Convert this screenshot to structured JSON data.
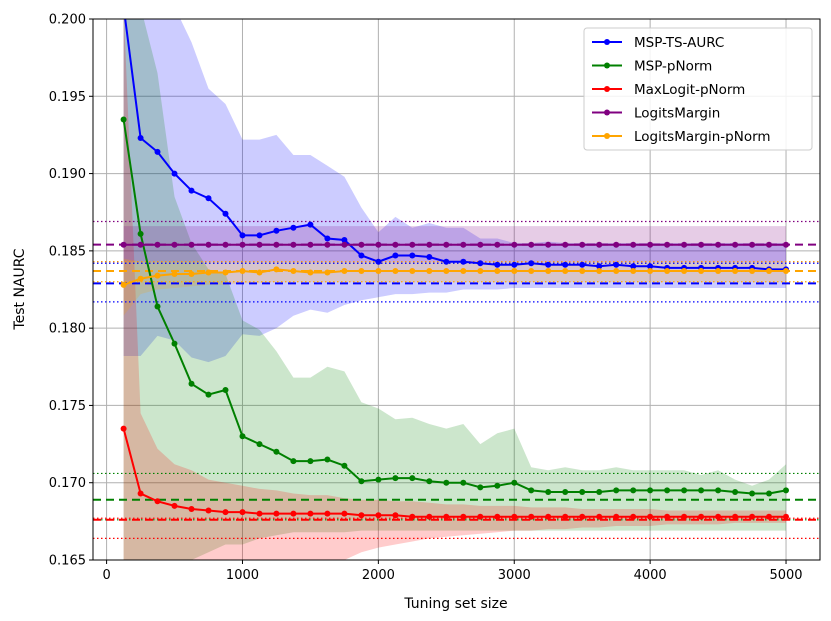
{
  "chart_data": {
    "type": "line",
    "xlabel": "Tuning set size",
    "ylabel": "Test NAURC",
    "xlim": [
      -100,
      5250
    ],
    "ylim": [
      0.165,
      0.2
    ],
    "grid": true,
    "legend_position": "top-right",
    "x_ticks": [
      0,
      1000,
      2000,
      3000,
      4000,
      5000
    ],
    "y_ticks": [
      0.165,
      0.17,
      0.175,
      0.18,
      0.185,
      0.19,
      0.195,
      0.2
    ],
    "x_tick_labels": [
      "0",
      "1000",
      "2000",
      "3000",
      "4000",
      "5000"
    ],
    "y_tick_labels": [
      "0.165",
      "0.170",
      "0.175",
      "0.180",
      "0.185",
      "0.190",
      "0.195",
      "0.200"
    ],
    "x": [
      125,
      250,
      375,
      500,
      625,
      750,
      875,
      1000,
      1125,
      1250,
      1375,
      1500,
      1625,
      1750,
      1875,
      2000,
      2125,
      2250,
      2375,
      2500,
      2625,
      2750,
      2875,
      3000,
      3125,
      3250,
      3375,
      3500,
      3625,
      3750,
      3875,
      4000,
      4125,
      4250,
      4375,
      4500,
      4625,
      4750,
      4875,
      5000
    ],
    "series": [
      {
        "name": "MSP-TS-AURC",
        "color": "#0000ff",
        "values": [
          0.2008,
          0.1923,
          0.1914,
          0.19,
          0.1889,
          0.1884,
          0.1874,
          0.186,
          0.186,
          0.1863,
          0.1865,
          0.1867,
          0.1858,
          0.1857,
          0.1847,
          0.1843,
          0.1847,
          0.1847,
          0.1846,
          0.1843,
          0.1843,
          0.1842,
          0.1841,
          0.1841,
          0.1842,
          0.1841,
          0.1841,
          0.1841,
          0.184,
          0.1841,
          0.184,
          0.184,
          0.1839,
          0.1839,
          0.1839,
          0.1839,
          0.1839,
          0.1839,
          0.1838,
          0.1838
        ],
        "band_upper": [
          0.2008,
          0.2008,
          0.2008,
          0.2008,
          0.1985,
          0.1955,
          0.1945,
          0.1922,
          0.1922,
          0.1925,
          0.1912,
          0.1912,
          0.1905,
          0.1898,
          0.1878,
          0.1862,
          0.1872,
          0.1865,
          0.1868,
          0.1865,
          0.1865,
          0.1858,
          0.1858,
          0.1855,
          0.1855,
          0.1856,
          0.1855,
          0.1855,
          0.1855,
          0.1855,
          0.1855,
          0.1855,
          0.1855,
          0.1855,
          0.1855,
          0.1855,
          0.1855,
          0.1855,
          0.1855,
          0.1855
        ],
        "band_lower": [
          0.1782,
          0.1782,
          0.1795,
          0.1792,
          0.1781,
          0.1778,
          0.1782,
          0.1796,
          0.1795,
          0.18,
          0.1808,
          0.1812,
          0.181,
          0.1815,
          0.1818,
          0.182,
          0.1822,
          0.1822,
          0.1823,
          0.1823,
          0.1825,
          0.1825,
          0.1825,
          0.1826,
          0.1826,
          0.1826,
          0.1826,
          0.1826,
          0.1826,
          0.1826,
          0.1826,
          0.1826,
          0.1826,
          0.1826,
          0.1826,
          0.1826,
          0.1826,
          0.1826,
          0.1826,
          0.1826
        ]
      },
      {
        "name": "MSP-pNorm",
        "color": "#008000",
        "values": [
          0.1935,
          0.1861,
          0.1814,
          0.179,
          0.1764,
          0.1757,
          0.176,
          0.173,
          0.1725,
          0.172,
          0.1714,
          0.1714,
          0.1715,
          0.1711,
          0.1701,
          0.1702,
          0.1703,
          0.1703,
          0.1701,
          0.17,
          0.17,
          0.1697,
          0.1698,
          0.17,
          0.1695,
          0.1694,
          0.1694,
          0.1694,
          0.1694,
          0.1695,
          0.1695,
          0.1695,
          0.1695,
          0.1695,
          0.1695,
          0.1695,
          0.1694,
          0.1693,
          0.1693,
          0.1695
        ],
        "band_upper": [
          0.2008,
          0.2008,
          0.1965,
          0.1885,
          0.1855,
          0.1838,
          0.1835,
          0.1805,
          0.1799,
          0.1785,
          0.1768,
          0.1768,
          0.1775,
          0.1772,
          0.1752,
          0.1748,
          0.1741,
          0.1742,
          0.1738,
          0.1735,
          0.1738,
          0.1725,
          0.1732,
          0.1735,
          0.171,
          0.1708,
          0.171,
          0.1708,
          0.1708,
          0.171,
          0.1708,
          0.1708,
          0.1708,
          0.1708,
          0.1705,
          0.1708,
          0.1702,
          0.1698,
          0.1702,
          0.1712
        ],
        "band_lower": [
          0.165,
          0.165,
          0.165,
          0.165,
          0.165,
          0.1655,
          0.166,
          0.166,
          0.1664,
          0.1666,
          0.1668,
          0.1668,
          0.1668,
          0.1668,
          0.1669,
          0.1669,
          0.1669,
          0.1669,
          0.1669,
          0.1669,
          0.1669,
          0.1669,
          0.1669,
          0.1669,
          0.1669,
          0.1669,
          0.1669,
          0.1669,
          0.1669,
          0.1669,
          0.1669,
          0.1669,
          0.1669,
          0.1669,
          0.1669,
          0.1669,
          0.1669,
          0.1669,
          0.1669,
          0.1669
        ]
      },
      {
        "name": "MaxLogit-pNorm",
        "color": "#ff0000",
        "values": [
          0.1735,
          0.1693,
          0.1688,
          0.1685,
          0.1683,
          0.1682,
          0.1681,
          0.1681,
          0.168,
          0.168,
          0.168,
          0.168,
          0.168,
          0.168,
          0.1679,
          0.1679,
          0.1679,
          0.1678,
          0.1678,
          0.1678,
          0.1678,
          0.1678,
          0.1678,
          0.1678,
          0.1678,
          0.1678,
          0.1678,
          0.1678,
          0.1678,
          0.1678,
          0.1678,
          0.1678,
          0.1678,
          0.1678,
          0.1678,
          0.1678,
          0.1678,
          0.1678,
          0.1678,
          0.1678
        ],
        "band_upper": [
          0.2008,
          0.1745,
          0.1722,
          0.1712,
          0.1708,
          0.1702,
          0.17,
          0.1698,
          0.1696,
          0.1695,
          0.1693,
          0.1692,
          0.1692,
          0.169,
          0.1689,
          0.1689,
          0.1688,
          0.1688,
          0.1687,
          0.1686,
          0.1686,
          0.1685,
          0.1685,
          0.1685,
          0.1684,
          0.1684,
          0.1684,
          0.1683,
          0.1683,
          0.1683,
          0.1683,
          0.1683,
          0.1682,
          0.1682,
          0.1682,
          0.1682,
          0.1682,
          0.1682,
          0.1682,
          0.1682
        ],
        "band_lower": [
          0.165,
          0.165,
          0.165,
          0.165,
          0.165,
          0.165,
          0.165,
          0.165,
          0.165,
          0.165,
          0.165,
          0.165,
          0.165,
          0.165,
          0.1655,
          0.1658,
          0.166,
          0.1662,
          0.1664,
          0.1665,
          0.1666,
          0.1667,
          0.1668,
          0.1669,
          0.1669,
          0.167,
          0.167,
          0.1671,
          0.1671,
          0.1672,
          0.1672,
          0.1672,
          0.1673,
          0.1673,
          0.1673,
          0.1673,
          0.1674,
          0.1674,
          0.1674,
          0.1674
        ]
      },
      {
        "name": "LogitsMargin",
        "color": "#800080",
        "values": [
          0.1854,
          0.1854,
          0.1854,
          0.1854,
          0.1854,
          0.1854,
          0.1854,
          0.1854,
          0.1854,
          0.1854,
          0.1854,
          0.1854,
          0.1854,
          0.1854,
          0.1854,
          0.1854,
          0.1854,
          0.1854,
          0.1854,
          0.1854,
          0.1854,
          0.1854,
          0.1854,
          0.1854,
          0.1854,
          0.1854,
          0.1854,
          0.1854,
          0.1854,
          0.1854,
          0.1854,
          0.1854,
          0.1854,
          0.1854,
          0.1854,
          0.1854,
          0.1854,
          0.1854,
          0.1854,
          0.1854
        ],
        "band_upper": [
          0.1866,
          0.1866,
          0.1866,
          0.1866,
          0.1866,
          0.1866,
          0.1866,
          0.1866,
          0.1866,
          0.1866,
          0.1866,
          0.1866,
          0.1866,
          0.1866,
          0.1866,
          0.1866,
          0.1866,
          0.1866,
          0.1866,
          0.1866,
          0.1866,
          0.1866,
          0.1866,
          0.1866,
          0.1866,
          0.1866,
          0.1866,
          0.1866,
          0.1866,
          0.1866,
          0.1866,
          0.1866,
          0.1866,
          0.1866,
          0.1866,
          0.1866,
          0.1866,
          0.1866,
          0.1866,
          0.1866
        ],
        "band_lower": [
          0.1843,
          0.1843,
          0.1843,
          0.1843,
          0.1843,
          0.1843,
          0.1843,
          0.1843,
          0.1843,
          0.1843,
          0.1843,
          0.1843,
          0.1843,
          0.1843,
          0.1843,
          0.1843,
          0.1843,
          0.1843,
          0.1843,
          0.1843,
          0.1843,
          0.1843,
          0.1843,
          0.1843,
          0.1843,
          0.1843,
          0.1843,
          0.1843,
          0.1843,
          0.1843,
          0.1843,
          0.1843,
          0.1843,
          0.1843,
          0.1843,
          0.1843,
          0.1843,
          0.1843,
          0.1843,
          0.1843
        ]
      },
      {
        "name": "LogitsMargin-pNorm",
        "color": "#ffa500",
        "values": [
          0.1828,
          0.1832,
          0.1834,
          0.1835,
          0.1835,
          0.1836,
          0.1836,
          0.1837,
          0.1836,
          0.1838,
          0.1837,
          0.1836,
          0.1836,
          0.1837,
          0.1837,
          0.1837,
          0.1837,
          0.1837,
          0.1837,
          0.1837,
          0.1837,
          0.1837,
          0.1837,
          0.1837,
          0.1837,
          0.1837,
          0.1837,
          0.1837,
          0.1837,
          0.1837,
          0.1837,
          0.1837,
          0.1837,
          0.1837,
          0.1837,
          0.1837,
          0.1837,
          0.1837,
          0.1837,
          0.1837
        ],
        "band_upper": [
          0.1845,
          0.1843,
          0.1843,
          0.1843,
          0.1843,
          0.1843,
          0.1843,
          0.1843,
          0.1843,
          0.1843,
          0.1843,
          0.1843,
          0.1843,
          0.1843,
          0.1843,
          0.1843,
          0.1843,
          0.1843,
          0.1843,
          0.1843,
          0.1843,
          0.1843,
          0.1843,
          0.1843,
          0.1843,
          0.1843,
          0.1843,
          0.1843,
          0.1843,
          0.1843,
          0.1843,
          0.1843,
          0.1843,
          0.1843,
          0.1843,
          0.1843,
          0.1843,
          0.1843,
          0.1843,
          0.1843
        ],
        "band_lower": [
          0.1808,
          0.1822,
          0.1825,
          0.1826,
          0.1827,
          0.1828,
          0.1828,
          0.1829,
          0.1829,
          0.183,
          0.183,
          0.183,
          0.183,
          0.183,
          0.183,
          0.183,
          0.183,
          0.183,
          0.183,
          0.183,
          0.183,
          0.183,
          0.183,
          0.183,
          0.183,
          0.183,
          0.183,
          0.183,
          0.183,
          0.183,
          0.183,
          0.183,
          0.183,
          0.183,
          0.183,
          0.183,
          0.183,
          0.183,
          0.183,
          0.183
        ]
      }
    ],
    "reference_lines": [
      {
        "series": "MSP-TS-AURC",
        "color": "#0000ff",
        "mean": 0.1829,
        "lower": 0.1817,
        "upper": 0.1842
      },
      {
        "series": "MSP-pNorm",
        "color": "#008000",
        "mean": 0.1689,
        "lower": 0.1676,
        "upper": 0.1706
      },
      {
        "series": "MaxLogit-pNorm",
        "color": "#ff0000",
        "mean": 0.1676,
        "lower": 0.1664,
        "upper": 0.1677
      },
      {
        "series": "LogitsMargin",
        "color": "#800080",
        "mean": 0.1854,
        "lower": 0.1843,
        "upper": 0.1869
      },
      {
        "series": "LogitsMargin-pNorm",
        "color": "#ffa500",
        "mean": 0.1837,
        "lower": 0.183,
        "upper": 0.1843
      }
    ]
  }
}
